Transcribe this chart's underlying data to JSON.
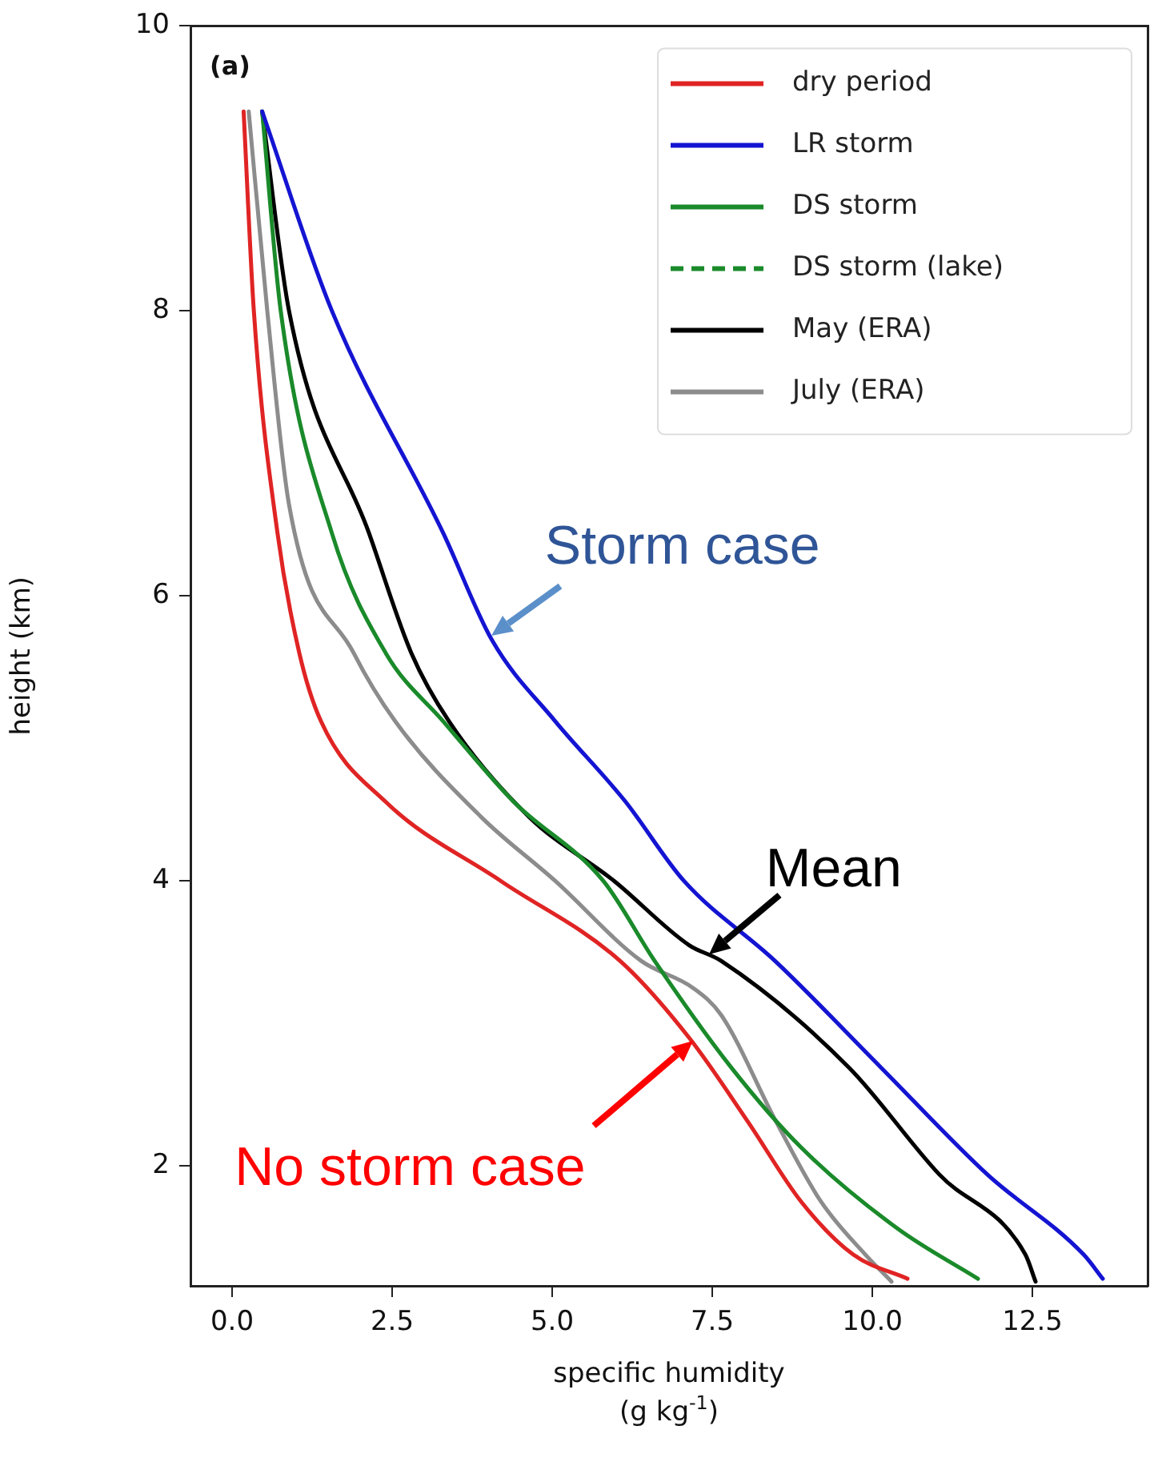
{
  "chart_data": {
    "type": "line",
    "xlabel": "specific humidity\n(g kg$^{-1}$)",
    "ylabel": "height (km)",
    "xlim": [
      -0.65,
      14.3
    ],
    "ylim": [
      1.16,
      10
    ],
    "xticks": [
      {
        "value": 0,
        "label": "0.0"
      },
      {
        "value": 2.5,
        "label": "2.5"
      },
      {
        "value": 5,
        "label": "5.0"
      },
      {
        "value": 7.5,
        "label": "7.5"
      },
      {
        "value": 10,
        "label": "10.0"
      },
      {
        "value": 12.5,
        "label": "12.5"
      }
    ],
    "yticks": [
      2,
      4,
      6,
      8,
      10
    ],
    "legend": "top right",
    "grid": false,
    "marker": "none",
    "annotations": [
      "(a)",
      {
        "text": "Storm case",
        "x": 4.06,
        "y": 5.72
      },
      {
        "text": "Mean",
        "x": 7.46,
        "y": 3.49
      },
      {
        "text": "No storm case",
        "x": 7.19,
        "y": 2.88
      }
    ],
    "series": [
      {
        "name": "dry period",
        "color": "#e02424",
        "x": [
          0.18,
          0.34,
          0.71,
          1.05,
          1.39,
          2.39,
          4.2,
          6.06,
          7.14,
          8.06,
          8.89,
          9.7,
          10.55
        ],
        "values": [
          9.4,
          8.0,
          6.44,
          5.6,
          5.12,
          4.56,
          4.0,
          3.44,
          2.9,
          2.31,
          1.75,
          1.38,
          1.21
        ]
      },
      {
        "name": "LR storm",
        "color": "#1414d2",
        "x": [
          0.47,
          1.56,
          3.3,
          4.06,
          5.05,
          6.14,
          7.06,
          8.48,
          10.14,
          11.8,
          13.3,
          13.6
        ],
        "values": [
          9.4,
          8.0,
          6.44,
          5.69,
          5.12,
          4.56,
          4.0,
          3.44,
          2.69,
          1.94,
          1.38,
          1.21
        ]
      },
      {
        "name": "DS storm",
        "color": "#1a8a2a",
        "x": [
          0.47,
          0.76,
          1.56,
          2.4,
          3.3,
          4.39,
          5.8,
          6.6,
          7.8,
          8.89,
          10.4,
          11.65
        ],
        "values": [
          9.4,
          8.0,
          6.44,
          5.6,
          5.12,
          4.56,
          4.0,
          3.44,
          2.69,
          2.13,
          1.56,
          1.21
        ]
      },
      {
        "name": "DS storm (lake)",
        "color": "#1a8a2a",
        "line_style": "dashed"
      },
      {
        "name": "May (ERA)",
        "color": "#000000",
        "x": [
          0.47,
          0.89,
          2.14,
          2.8,
          3.39,
          4.64,
          5.97,
          7.14,
          7.64,
          9.64,
          11.05,
          12.39,
          12.55
        ],
        "values": [
          9.4,
          8.0,
          6.44,
          5.6,
          5.12,
          4.45,
          4.0,
          3.55,
          3.44,
          2.69,
          1.94,
          1.38,
          1.19
        ]
      },
      {
        "name": "July (ERA)",
        "color": "#8c8c8c",
        "x": [
          0.26,
          0.55,
          0.89,
          1.9,
          2.55,
          3.89,
          5.05,
          6.39,
          7.2,
          7.64,
          8.5,
          9.2,
          9.89,
          10.3
        ],
        "values": [
          9.4,
          8.0,
          6.64,
          5.6,
          5.12,
          4.45,
          4.0,
          3.44,
          3.25,
          3.06,
          2.31,
          1.75,
          1.38,
          1.19
        ]
      }
    ]
  }
}
